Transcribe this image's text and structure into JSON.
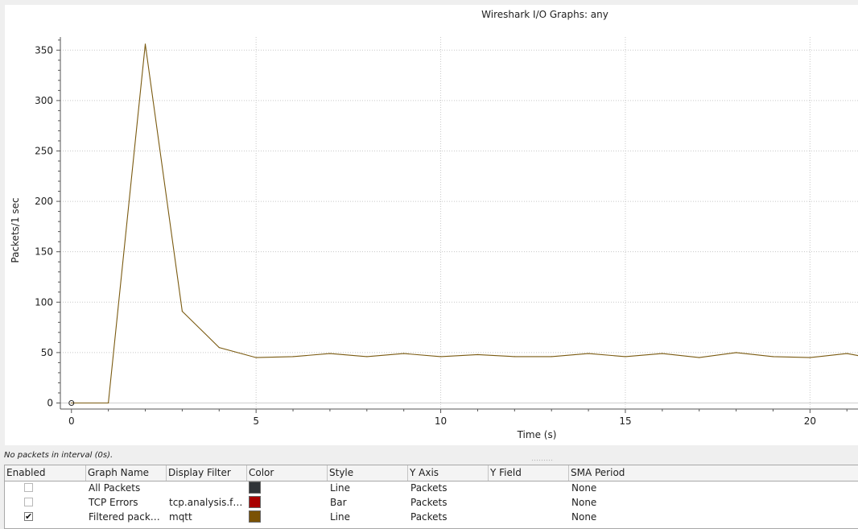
{
  "plot": {
    "title": "Wireshark I/O Graphs: any",
    "chart_data": {
      "type": "line",
      "title": "Wireshark I/O Graphs: any",
      "xlabel": "Time (s)",
      "ylabel": "Packets/1 sec",
      "xlim": [
        -0.3,
        21.3
      ],
      "ylim": [
        -6,
        363
      ],
      "x_ticks": [
        0,
        5,
        10,
        15,
        20
      ],
      "y_ticks": [
        0,
        50,
        100,
        150,
        200,
        250,
        300,
        350
      ],
      "grid": true,
      "series": [
        {
          "name": "Filtered packets",
          "color": "#7a5a10",
          "x": [
            0,
            1,
            2,
            3,
            4,
            5,
            6,
            7,
            8,
            9,
            10,
            11,
            12,
            13,
            14,
            15,
            16,
            17,
            18,
            19,
            20,
            21,
            21.3
          ],
          "y": [
            0,
            0,
            356,
            91,
            55,
            45,
            46,
            49,
            46,
            49,
            46,
            48,
            46,
            46,
            49,
            46,
            49,
            45,
            50,
            46,
            45,
            49,
            47
          ]
        }
      ],
      "marker": {
        "x": 0,
        "y": 0
      }
    }
  },
  "status": {
    "text": "No packets in interval (0s)."
  },
  "table": {
    "headers": [
      "Enabled",
      "Graph Name",
      "Display Filter",
      "Color",
      "Style",
      "Y Axis",
      "Y Field",
      "SMA Period"
    ],
    "rows": [
      {
        "enabled": false,
        "name": "All Packets",
        "filter": "",
        "color": "#2f3337",
        "style": "Line",
        "y_axis": "Packets",
        "y_field": "",
        "sma": "None"
      },
      {
        "enabled": false,
        "name": "TCP Errors",
        "filter": "tcp.analysis.f…",
        "color": "#a80000",
        "style": "Bar",
        "y_axis": "Packets",
        "y_field": "",
        "sma": "None"
      },
      {
        "enabled": true,
        "name": "Filtered pack…",
        "filter": "mqtt",
        "color": "#7a5205",
        "style": "Line",
        "y_axis": "Packets",
        "y_field": "",
        "sma": "None"
      }
    ],
    "check_mark": "✔"
  }
}
